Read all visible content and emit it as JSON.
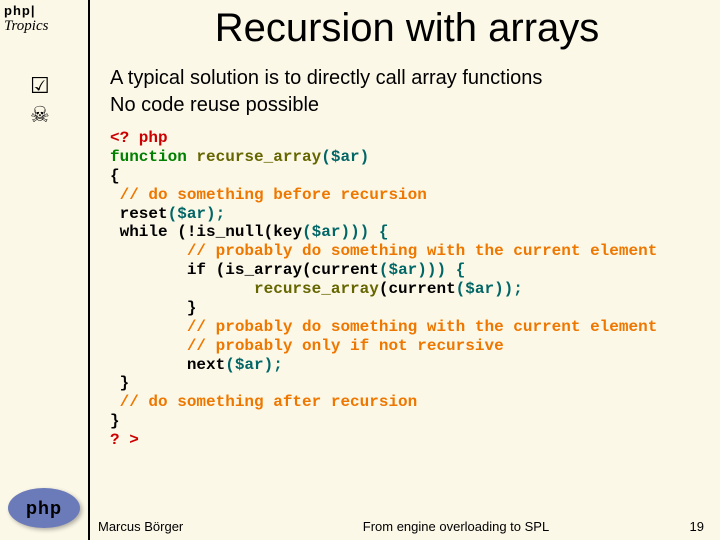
{
  "logo": {
    "line1": "php|",
    "line2": "Tropics"
  },
  "bullets": {
    "check": "☑",
    "skull": "☠"
  },
  "oval": {
    "text": "php"
  },
  "title": "Recursion with arrays",
  "point1": "A typical solution is to directly call array functions",
  "point2": "No code reuse possible",
  "code": {
    "colors": {
      "tag": "#cc0000",
      "keyword": "#008000",
      "funcname": "#666600",
      "var": "#006666",
      "plain": "#000000",
      "comment": "#ee7700"
    },
    "l01_open": "<? php",
    "l02_kw": "function",
    "l02_name": " recurse_array",
    "l02_rest": "($ar)",
    "l03": "{",
    "l04": " // do something before recursion",
    "l05_a": " reset",
    "l05_b": "($ar);",
    "l06_a": " while ",
    "l06_b": "(!",
    "l06_c": "is_null",
    "l06_d": "(",
    "l06_e": "key",
    "l06_f": "($ar))) {",
    "l07": "        // probably do something with the current element",
    "l08_a": "        if ",
    "l08_b": "(",
    "l08_c": "is_array",
    "l08_d": "(",
    "l08_e": "current",
    "l08_f": "($ar))) {",
    "l09_a": "               recurse_array",
    "l09_b": "(",
    "l09_c": "current",
    "l09_d": "($ar));",
    "l10": "        }",
    "l11": "        // probably do something with the current element",
    "l12": "        // probably only if not recursive",
    "l13_a": "        next",
    "l13_b": "($ar);",
    "l14": " }",
    "l15": " // do something after recursion",
    "l16": "}",
    "l17": "? >"
  },
  "footer": {
    "author": "Marcus Börger",
    "middle": "From engine overloading to SPL",
    "page": "19"
  }
}
